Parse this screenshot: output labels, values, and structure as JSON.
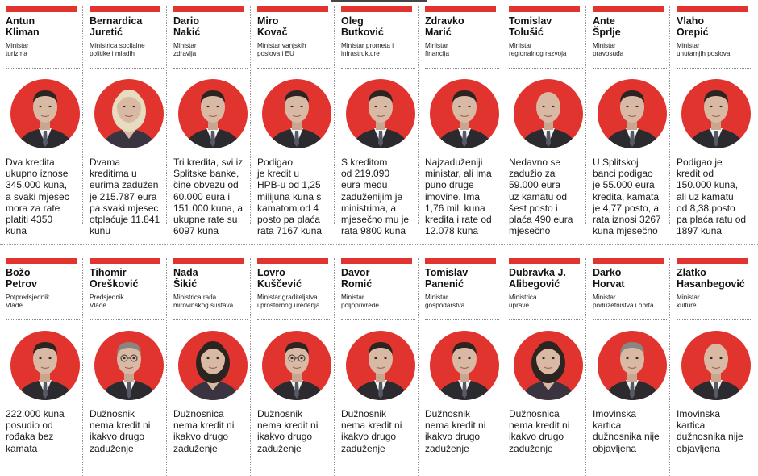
{
  "colors": {
    "accent": "#e2342f",
    "skin": "#d9b9a3",
    "suit": "#2a2a2f",
    "shirt": "#f4f4f4",
    "hair_dark": "#2b2420",
    "hair_blonde": "#e8dcc0",
    "hair_grey": "#8a8580"
  },
  "rows": [
    [
      {
        "name": "Antun\nKliman",
        "role": "Ministar\nturizma",
        "text": "Dva kredita\nukupno iznose\n345.000 kuna,\na svaki mjesec\nmora za rate\nplatiti 4350\nkuna",
        "hair": "hair_dark",
        "gender": "m",
        "glasses": false
      },
      {
        "name": "Bernardica\nJuretić",
        "role": "Ministrica socijalne\npolitike i mladih",
        "text": "Dvama\nkreditima u\neurima zadužen\nje 215.787 eura\npa svaki mjesec\notplaćuje 11.841\nkunu",
        "hair": "hair_blonde",
        "gender": "f",
        "glasses": false
      },
      {
        "name": "Dario\nNakić",
        "role": "Ministar\nzdravlja",
        "text": "Tri kredita, svi iz\nSplitske banke,\nčine obvezu od\n60.000 eura i\n151.000 kuna, a\nukupne rate su\n6097 kuna",
        "hair": "hair_dark",
        "gender": "m",
        "glasses": false
      },
      {
        "name": "Miro\nKovač",
        "role": "Ministar vanjskih\nposlova i EU",
        "text": "Podigao\nje kredit u\nHPB-u od 1,25\nmilijuna kuna s\nkamatom od 4\nposto pa plaća\nrata 7167 kuna",
        "hair": "hair_dark",
        "gender": "m",
        "glasses": false
      },
      {
        "name": "Oleg\nButković",
        "role": "Ministar prometa i\ninfrastrukture",
        "text": "S kreditom\nod 219.090\neura među\nzaduženijim je\nministrima, a\nmjesečno mu je\nrata 9800 kuna",
        "hair": "hair_dark",
        "gender": "m",
        "glasses": false
      },
      {
        "name": "Zdravko\nMarić",
        "role": "Ministar\nfinancija",
        "text": "Najzaduženiji\nministar, ali ima\npuno druge\nimovine. Ima\n1,76 mil. kuna\nkredita i rate od\n12.078 kuna",
        "hair": "hair_dark",
        "gender": "m",
        "glasses": false
      },
      {
        "name": "Tomislav\nTolušić",
        "role": "Ministar\nregionalnog razvoja",
        "text": "Nedavno se\nzadužio za\n59.000 eura\nuz kamatu od\nšest posto i\nplaća 490 eura\nmjesečno",
        "hair": "none",
        "gender": "m",
        "glasses": false
      },
      {
        "name": "Ante\nŠprlje",
        "role": "Ministar\npravosuđa",
        "text": "U Splitskoj\nbanci podigao\nje 55.000 eura\nkredita, kamata\nje 4,77 posto, a\nrata iznosi  3267\nkuna mjesečno",
        "hair": "hair_dark",
        "gender": "m",
        "glasses": false
      },
      {
        "name": "Vlaho\nOrepić",
        "role": "Ministar\nunutarnjih poslova",
        "text": "Podigao je\nkredit od\n150.000 kuna,\nali uz kamatu\nod 8,38 posto\npa plaća ratu od\n1897 kuna",
        "hair": "hair_dark",
        "gender": "m",
        "glasses": false
      }
    ],
    [
      {
        "name": "Božo\nPetrov",
        "role": "Potpredsjednik\nVlade",
        "text": "222.000 kuna\nposudio od\nrođaka bez\nkamata",
        "hair": "hair_dark",
        "gender": "m",
        "glasses": false
      },
      {
        "name": "Tihomir\nOrešković",
        "role": "Predsjednik\nVlade",
        "text": "Dužnosnik\nnema kredit ni\nikakvo drugo\nzaduženje",
        "hair": "hair_grey",
        "gender": "m",
        "glasses": true
      },
      {
        "name": "Nada\nŠikić",
        "role": "Ministrica rada i\nmirovinskog sustava",
        "text": "Dužnosnica\nnema kredit ni\nikakvo drugo\nzaduženje",
        "hair": "hair_dark",
        "gender": "f",
        "glasses": false
      },
      {
        "name": "Lovro\nKuščević",
        "role": "Ministar graditeljstva\ni prostornog uređenja",
        "text": "Dužnosnik\nnema kredit ni\nikakvo drugo\nzaduženje",
        "hair": "hair_dark",
        "gender": "m",
        "glasses": true
      },
      {
        "name": "Davor\nRomić",
        "role": "Ministar\npoljoprivrede",
        "text": "Dužnosnik\nnema kredit ni\nikakvo drugo\nzaduženje",
        "hair": "hair_dark",
        "gender": "m",
        "glasses": false
      },
      {
        "name": "Tomislav\nPanenić",
        "role": "Ministar\ngospodarstva",
        "text": "Dužnosnik\nnema kredit ni\nikakvo drugo\nzaduženje",
        "hair": "hair_dark",
        "gender": "m",
        "glasses": false
      },
      {
        "name": "Dubravka J.\nAlibegović",
        "role": "Ministrica\nuprave",
        "text": "Dužnosnica\nnema kredit ni\nikakvo drugo\nzaduženje",
        "hair": "hair_dark",
        "gender": "f",
        "glasses": false
      },
      {
        "name": "Darko\nHorvat",
        "role": "Ministar\npoduzetništva i obrta",
        "text": "Imovinska\nkartica\ndužnosnika nije\nobjavljena",
        "hair": "hair_grey",
        "gender": "m",
        "glasses": false
      },
      {
        "name": "Zlatko\nHasanbegović",
        "role": "Ministar\nkulture",
        "text": "Imovinska\nkartica\ndužnosnika nije\nobjavljena",
        "hair": "none",
        "gender": "m",
        "glasses": false
      }
    ]
  ]
}
